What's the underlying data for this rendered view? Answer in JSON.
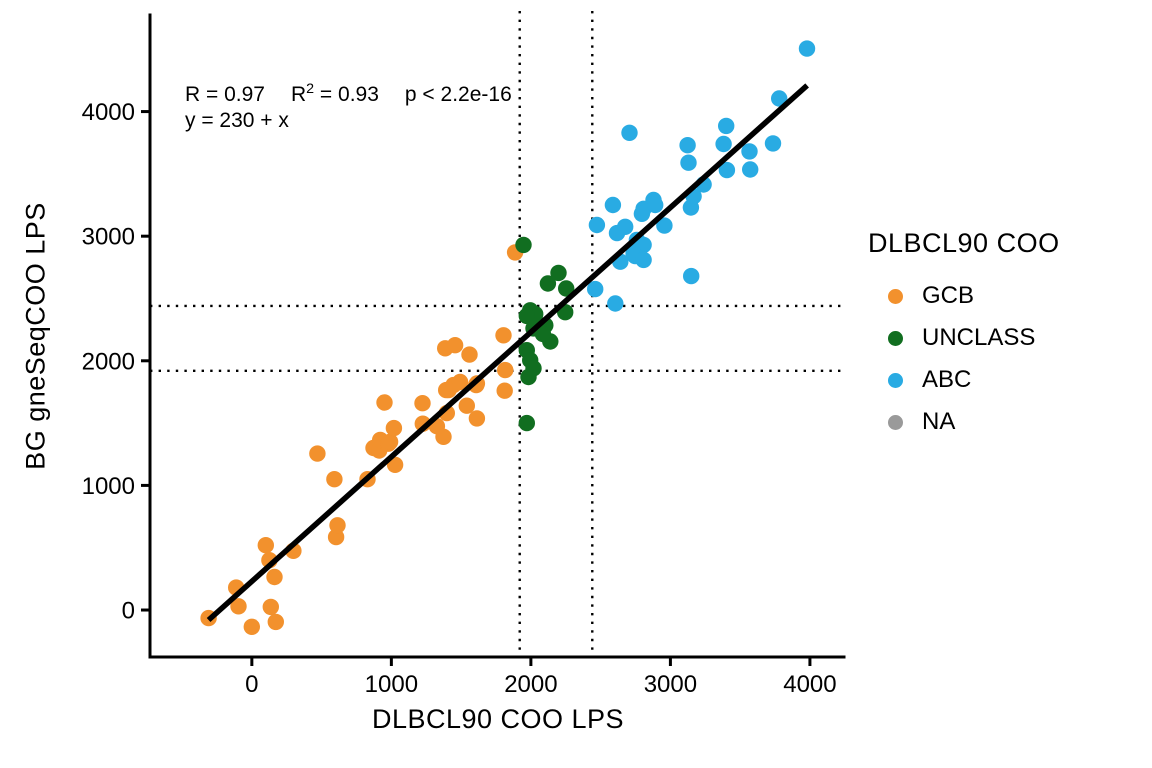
{
  "chart_data": {
    "type": "scatter",
    "title": "",
    "xlabel": "DLBCL90 COO LPS",
    "ylabel": "BG gneSeqCOO LPS",
    "xlim": [
      -730,
      4255
    ],
    "ylim": [
      -377,
      4775
    ],
    "x_ticks": [
      0,
      1000,
      2000,
      3000,
      4000
    ],
    "y_ticks": [
      0,
      1000,
      2000,
      3000,
      4000
    ],
    "grid": false,
    "legend_position": "right",
    "reference_lines": {
      "style": "dotted",
      "vertical_x": [
        1920,
        2440
      ],
      "horizontal_y": [
        1920,
        2440
      ]
    },
    "regression_line": {
      "equation": "y = 230 + x",
      "intercept": 230,
      "slope": 1,
      "x_start": -310,
      "x_end": 3980,
      "color": "#000000"
    },
    "series": [
      {
        "name": "GCB",
        "color": "#F2912D",
        "points": [
          [
            -310,
            -65
          ],
          [
            -96,
            30
          ],
          [
            -112,
            180
          ],
          [
            0,
            -135
          ],
          [
            100,
            520
          ],
          [
            126,
            400
          ],
          [
            162,
            265
          ],
          [
            136,
            25
          ],
          [
            172,
            -95
          ],
          [
            298,
            475
          ],
          [
            592,
            1050
          ],
          [
            604,
            585
          ],
          [
            614,
            680
          ],
          [
            470,
            1255
          ],
          [
            829,
            1050
          ],
          [
            872,
            1300
          ],
          [
            913,
            1280
          ],
          [
            920,
            1365
          ],
          [
            951,
            1665
          ],
          [
            979,
            1335
          ],
          [
            991,
            1350
          ],
          [
            1018,
            1460
          ],
          [
            1027,
            1165
          ],
          [
            1223,
            1660
          ],
          [
            1225,
            1495
          ],
          [
            1326,
            1475
          ],
          [
            1374,
            1390
          ],
          [
            1386,
            2100
          ],
          [
            1393,
            1765
          ],
          [
            1397,
            1580
          ],
          [
            1410,
            1765
          ],
          [
            1445,
            1805
          ],
          [
            1457,
            2125
          ],
          [
            1493,
            1830
          ],
          [
            1541,
            1640
          ],
          [
            1560,
            2050
          ],
          [
            1608,
            1805
          ],
          [
            1613,
            1538
          ],
          [
            1613,
            1818
          ],
          [
            1804,
            2205
          ],
          [
            1812,
            1760
          ],
          [
            1816,
            1925
          ],
          [
            1887,
            2870
          ]
        ]
      },
      {
        "name": "UNCLASS",
        "color": "#116E20",
        "points": [
          [
            1947,
            2930
          ],
          [
            2122,
            2620
          ],
          [
            2198,
            2705
          ],
          [
            2253,
            2580
          ],
          [
            1995,
            2405
          ],
          [
            2031,
            2375
          ],
          [
            1971,
            2360
          ],
          [
            2246,
            2390
          ],
          [
            2019,
            2260
          ],
          [
            2103,
            2285
          ],
          [
            2139,
            2155
          ],
          [
            2086,
            2215
          ],
          [
            1971,
            2085
          ],
          [
            1995,
            2005
          ],
          [
            2019,
            1940
          ],
          [
            1983,
            1870
          ],
          [
            1971,
            1500
          ]
        ]
      },
      {
        "name": "ABC",
        "color": "#29ABE3",
        "points": [
          [
            2461,
            2575
          ],
          [
            2605,
            2460
          ],
          [
            2473,
            3090
          ],
          [
            2617,
            3025
          ],
          [
            2676,
            3075
          ],
          [
            2760,
            2970
          ],
          [
            2808,
            2930
          ],
          [
            2736,
            2860
          ],
          [
            2748,
            2840
          ],
          [
            2808,
            2810
          ],
          [
            2641,
            2795
          ],
          [
            2957,
            3085
          ],
          [
            2588,
            3250
          ],
          [
            2808,
            3220
          ],
          [
            2796,
            3180
          ],
          [
            2879,
            3290
          ],
          [
            2891,
            3250
          ],
          [
            2707,
            3830
          ],
          [
            3123,
            3730
          ],
          [
            3130,
            3590
          ],
          [
            3147,
            3230
          ],
          [
            3166,
            3320
          ],
          [
            3238,
            3415
          ],
          [
            3400,
            3885
          ],
          [
            3381,
            3740
          ],
          [
            3405,
            3530
          ],
          [
            3567,
            3680
          ],
          [
            3572,
            3535
          ],
          [
            3735,
            3745
          ],
          [
            3780,
            4105
          ],
          [
            3979,
            4505
          ],
          [
            3149,
            2680
          ]
        ]
      },
      {
        "name": "NA",
        "color": "#9A9A9A",
        "points": []
      }
    ]
  },
  "axes": {
    "x_label": "DLBCL90 COO LPS",
    "y_label": "BG gneSeqCOO LPS"
  },
  "annotation": {
    "r": "R = 0.97",
    "r2_base": "R",
    "r2_sup": "2",
    "r2_rest": " = 0.93",
    "p": "p < 2.2e-16",
    "equation": "y = 230 + x"
  },
  "legend": {
    "title": "DLBCL90 COO",
    "items": [
      {
        "label": "GCB",
        "color": "#F2912D"
      },
      {
        "label": "UNCLASS",
        "color": "#116E20"
      },
      {
        "label": "ABC",
        "color": "#29ABE3"
      },
      {
        "label": "NA",
        "color": "#9A9A9A"
      }
    ]
  },
  "colors": {
    "axis": "#000000",
    "regression": "#000000",
    "reference": "#000000",
    "background": "#ffffff"
  }
}
